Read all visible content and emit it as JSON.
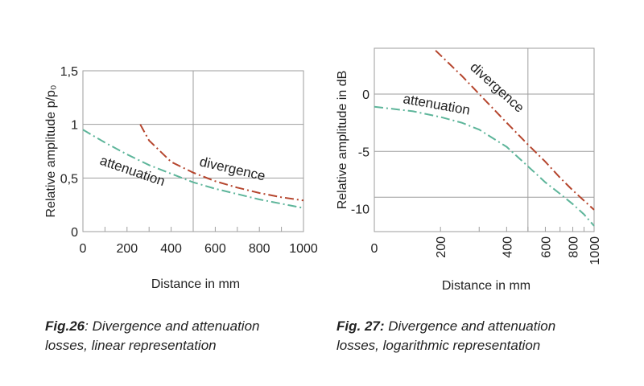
{
  "colors": {
    "divergence": "#b5452d",
    "attenuation": "#5db59a",
    "grid": "#9e9e9e",
    "frame": "#9e9e9e"
  },
  "chart_data": [
    {
      "type": "line",
      "title": "",
      "xlabel": "Distance in mm",
      "ylabel": "Relative amplitude p/p₀",
      "xlim": [
        0,
        1000
      ],
      "ylim": [
        0,
        1.5
      ],
      "grid": true,
      "x_ticks": [
        0,
        200,
        400,
        600,
        800,
        1000
      ],
      "x_tick_labels": [
        "0",
        "200",
        "400",
        "600",
        "800",
        "1000"
      ],
      "y_ticks": [
        0,
        0.5,
        1,
        1.5
      ],
      "y_tick_labels": [
        "0",
        "0,5",
        "1",
        "1,5"
      ],
      "series": [
        {
          "name": "divergence",
          "x": [
            260,
            300,
            400,
            500,
            600,
            700,
            800,
            900,
            1000
          ],
          "y": [
            1.0,
            0.85,
            0.65,
            0.55,
            0.47,
            0.41,
            0.36,
            0.32,
            0.29
          ]
        },
        {
          "name": "attenuation",
          "x": [
            0,
            100,
            200,
            300,
            400,
            500,
            600,
            700,
            800,
            900,
            1000
          ],
          "y": [
            0.95,
            0.83,
            0.72,
            0.62,
            0.54,
            0.46,
            0.4,
            0.35,
            0.3,
            0.26,
            0.22
          ]
        }
      ],
      "annotations": [
        "divergence",
        "attenuation"
      ]
    },
    {
      "type": "line",
      "title": "",
      "xlabel": "Distance in mm",
      "ylabel": "Relative amplitude in dB",
      "xscale": "log",
      "xlim": [
        100,
        1000
      ],
      "ylim": [
        -12,
        4
      ],
      "grid": true,
      "x_ticks": [
        200,
        400,
        600,
        800,
        1000
      ],
      "x_tick_labels": [
        "200",
        "400",
        "600",
        "800",
        "1000"
      ],
      "x_zero_label": "0",
      "y_ticks": [
        0,
        -5,
        -10
      ],
      "y_tick_labels": [
        "0",
        "-5",
        "-10"
      ],
      "series": [
        {
          "name": "divergence",
          "x": [
            190,
            250,
            300,
            400,
            500,
            600,
            700,
            800,
            900,
            1000
          ],
          "y": [
            3.8,
            1.6,
            0.0,
            -2.5,
            -4.4,
            -5.9,
            -7.3,
            -8.4,
            -9.3,
            -10.1
          ]
        },
        {
          "name": "attenuation",
          "x": [
            100,
            150,
            200,
            250,
            300,
            400,
            500,
            600,
            700,
            800,
            900,
            1000
          ],
          "y": [
            -1.1,
            -1.5,
            -2.0,
            -2.5,
            -3.1,
            -4.6,
            -6.3,
            -7.7,
            -8.7,
            -9.6,
            -10.5,
            -11.5
          ]
        }
      ],
      "annotations": [
        "divergence",
        "attenuation"
      ]
    }
  ],
  "captions": [
    {
      "label": "Fig.26",
      "text": ": Divergence and attenuation",
      "line2": "losses, linear representation"
    },
    {
      "label": "Fig. 27:",
      "text": " Divergence and attenuation",
      "line2": "losses, logarithmic representation"
    }
  ]
}
